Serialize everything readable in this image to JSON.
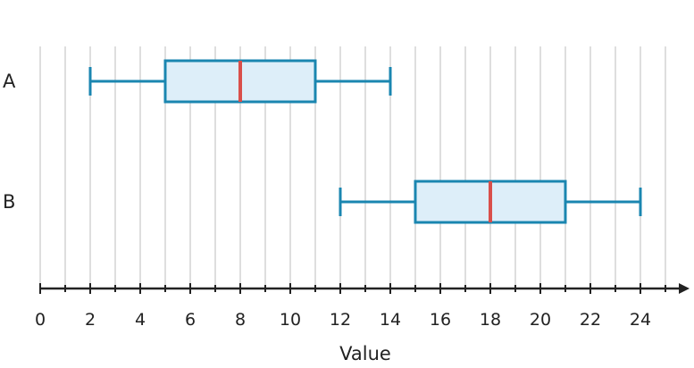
{
  "chart_data": {
    "type": "boxplot",
    "orientation": "horizontal",
    "title": "",
    "xlabel": "Value",
    "ylabel": "",
    "xlim": [
      0,
      25.5
    ],
    "x_ticks_labeled": [
      0,
      2,
      4,
      6,
      8,
      10,
      12,
      14,
      16,
      18,
      20,
      22,
      24
    ],
    "x_minor_step": 1,
    "grid": true,
    "categories": [
      "A",
      "B"
    ],
    "boxes": [
      {
        "category": "A",
        "whisker_low": 2,
        "q1": 5,
        "median": 8,
        "q3": 11,
        "whisker_high": 14
      },
      {
        "category": "B",
        "whisker_low": 12,
        "q1": 15,
        "median": 18,
        "q3": 21,
        "whisker_high": 24
      }
    ],
    "colors": {
      "box_fill": "#ddeef9",
      "box_stroke": "#1a86b0",
      "median": "#d94f4b",
      "grid": "#d4d4d4",
      "axis": "#222222"
    }
  }
}
